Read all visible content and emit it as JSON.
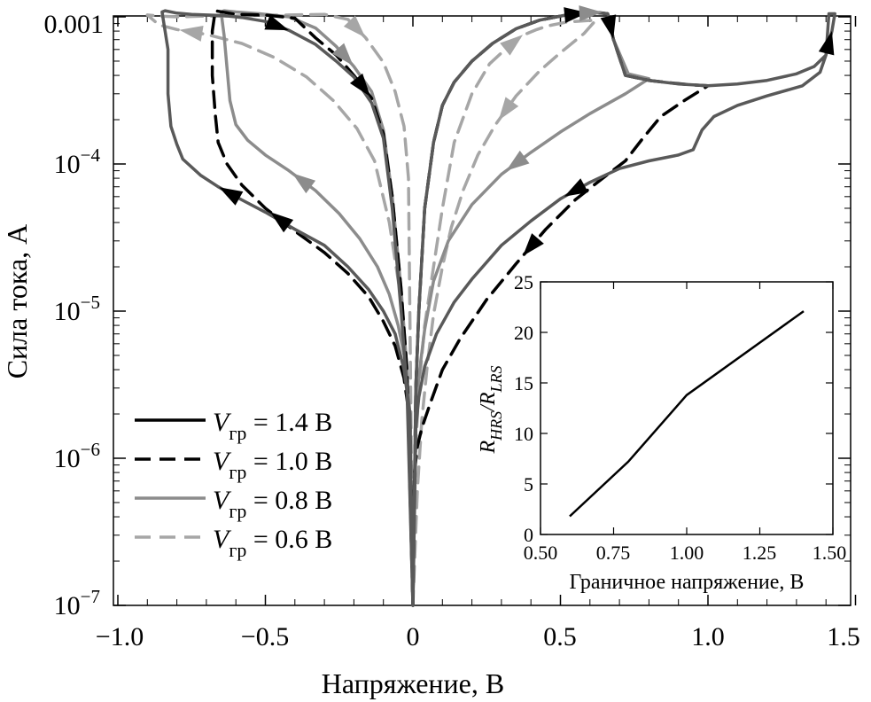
{
  "chart_data": [
    {
      "type": "line",
      "xlabel": "Напряжение, В",
      "ylabel": "Сила тока, А",
      "x_ticks": [
        "−1.0",
        "−0.5",
        "0",
        "0.5",
        "1.0",
        "1.5"
      ],
      "x_tick_values": [
        -1.0,
        -0.5,
        0,
        0.5,
        1.0,
        1.5
      ],
      "y_scale": "log",
      "y_tick_values": [
        1e-07,
        1e-06,
        1e-05,
        0.0001,
        0.001
      ],
      "y_ticks": [
        {
          "base": "10",
          "exp": "−7"
        },
        {
          "base": "10",
          "exp": "−6"
        },
        {
          "base": "10",
          "exp": "−5"
        },
        {
          "base": "10",
          "exp": "−4"
        },
        {
          "base": "0.001",
          "exp": ""
        }
      ],
      "xlim": [
        -1.0,
        1.5
      ],
      "ylim": [
        1e-07,
        0.0012
      ],
      "legend_position": "lower-left",
      "series": [
        {
          "name": "V_гр = 1.4 В",
          "legend": {
            "v": "V",
            "sub": "гр",
            "rest": " = 1.4 В"
          },
          "color": "#595959",
          "dash": "solid",
          "x": [
            0,
            -0.01,
            -0.03,
            -0.06,
            -0.1,
            -0.15,
            -0.22,
            -0.3,
            -0.4,
            -0.5,
            -0.58,
            -0.66,
            -0.72,
            -0.78,
            -0.8,
            -0.82,
            -0.83,
            -0.83,
            -0.85,
            -0.84,
            -0.8,
            -0.75,
            -0.7,
            -0.64,
            -0.58,
            -0.5,
            -0.42,
            -0.33,
            -0.26,
            -0.2,
            -0.14,
            -0.1,
            -0.07,
            -0.04,
            -0.02,
            0,
            0.01,
            0.02,
            0.04,
            0.07,
            0.1,
            0.14,
            0.2,
            0.27,
            0.35,
            0.43,
            0.52,
            0.58,
            0.63,
            0.66,
            0.68,
            0.72,
            0.8,
            0.9,
            1.0,
            1.1,
            1.2,
            1.3,
            1.36,
            1.4,
            1.42,
            1.43,
            1.41,
            1.4,
            1.38,
            1.32,
            1.2,
            1.1,
            1.02,
            0.98,
            0.95,
            0.9,
            0.8,
            0.7,
            0.6,
            0.5,
            0.4,
            0.3,
            0.2,
            0.14,
            0.08,
            0.04,
            0.02,
            0.01,
            0
          ],
          "y": [
            1e-07,
            2e-06,
            4e-06,
            7e-06,
            1e-05,
            1.4e-05,
            2e-05,
            2.8e-05,
            3.6e-05,
            4.7e-05,
            5.7e-05,
            7e-05,
            8.4e-05,
            0.000108,
            0.000136,
            0.00018,
            0.0003,
            0.0006,
            0.00108,
            0.0011,
            0.00106,
            0.00104,
            0.00103,
            0.00102,
            0.00099,
            0.00093,
            0.00081,
            0.00065,
            0.0005,
            0.00039,
            0.00026,
            0.00015,
            5e-05,
            1e-05,
            3e-06,
            1e-07,
            3e-06,
            1e-05,
            5e-05,
            0.00014,
            0.00025,
            0.00036,
            0.0005,
            0.00066,
            0.00083,
            0.00095,
            0.00103,
            0.00106,
            0.00107,
            0.00105,
            0.0007,
            0.0004,
            0.00037,
            0.00035,
            0.00034,
            0.00035,
            0.00037,
            0.00041,
            0.00046,
            0.00055,
            0.0008,
            0.00105,
            0.00105,
            0.00055,
            0.00042,
            0.00034,
            0.00029,
            0.00025,
            0.00021,
            0.00017,
            0.000125,
            0.000115,
            0.000105,
            9.3e-05,
            7.5e-05,
            5.8e-05,
            4.1e-05,
            2.8e-05,
            1.65e-05,
            1.15e-05,
            7e-06,
            4.2e-06,
            2.6e-06,
            1.6e-06,
            1e-07
          ]
        },
        {
          "name": "V_гр = 1.0 В",
          "legend": {
            "v": "V",
            "sub": "гр",
            "rest": " = 1.0 В"
          },
          "color": "#000000",
          "dash": "dashed",
          "x": [
            0,
            -0.01,
            -0.03,
            -0.06,
            -0.1,
            -0.15,
            -0.22,
            -0.3,
            -0.4,
            -0.5,
            -0.58,
            -0.63,
            -0.66,
            -0.67,
            -0.68,
            -0.68,
            -0.67,
            -0.6,
            -0.5,
            -0.4,
            -0.33,
            -0.26,
            -0.2,
            -0.14,
            -0.1,
            -0.07,
            -0.04,
            -0.02,
            0,
            0.01,
            0.02,
            0.04,
            0.07,
            0.1,
            0.14,
            0.2,
            0.27,
            0.35,
            0.43,
            0.52,
            0.58,
            0.62,
            0.66,
            0.68,
            0.72,
            0.8,
            0.88,
            0.94,
            1.0,
            0.92,
            0.84,
            0.78,
            0.72,
            0.65,
            0.55,
            0.45,
            0.35,
            0.25,
            0.16,
            0.1,
            0.06,
            0.03,
            0.015,
            0.005,
            0
          ],
          "y": [
            1e-07,
            1.8e-06,
            3.5e-06,
            5.8e-06,
            8.5e-06,
            1.25e-05,
            1.8e-05,
            2.5e-05,
            3.5e-05,
            5e-05,
            7.2e-05,
            0.0001,
            0.00014,
            0.00022,
            0.0004,
            0.0008,
            0.0011,
            0.00104,
            0.00103,
            0.00098,
            0.00072,
            0.00055,
            0.0004,
            0.00028,
            0.00016,
            6e-05,
            1.4e-05,
            4e-06,
            1e-07,
            3e-06,
            1e-05,
            5e-05,
            0.00014,
            0.00025,
            0.00036,
            0.0005,
            0.00066,
            0.00083,
            0.00095,
            0.00103,
            0.00106,
            0.00107,
            0.00105,
            0.0007,
            0.0004,
            0.00037,
            0.000355,
            0.000345,
            0.00034,
            0.00027,
            0.00021,
            0.00015,
            0.000105,
            8.2e-05,
            5.7e-05,
            3.6e-05,
            2.1e-05,
            1.2e-05,
            6.5e-06,
            4e-06,
            2.4e-06,
            1.6e-06,
            1.2e-06,
            8e-07,
            1e-07
          ]
        },
        {
          "name": "V_гр = 0.8 В",
          "legend": {
            "v": "V",
            "sub": "гр",
            "rest": " = 0.8 В"
          },
          "color": "#8c8c8c",
          "dash": "solid",
          "x": [
            0,
            -0.01,
            -0.025,
            -0.05,
            -0.08,
            -0.12,
            -0.18,
            -0.25,
            -0.33,
            -0.42,
            -0.5,
            -0.56,
            -0.6,
            -0.62,
            -0.63,
            -0.64,
            -0.65,
            -0.64,
            -0.6,
            -0.52,
            -0.42,
            -0.33,
            -0.26,
            -0.2,
            -0.14,
            -0.1,
            -0.07,
            -0.04,
            -0.02,
            0,
            0.01,
            0.02,
            0.04,
            0.07,
            0.1,
            0.14,
            0.2,
            0.27,
            0.35,
            0.43,
            0.52,
            0.58,
            0.62,
            0.66,
            0.68,
            0.73,
            0.8,
            0.72,
            0.6,
            0.5,
            0.4,
            0.3,
            0.2,
            0.12,
            0.07,
            0.04,
            0.02,
            0.01,
            0
          ],
          "y": [
            1e-07,
            2e-06,
            4.5e-06,
            8e-06,
            1.3e-05,
            2e-05,
            3.1e-05,
            4.6e-05,
            6.6e-05,
            9e-05,
            0.000115,
            0.000145,
            0.000185,
            0.00027,
            0.00045,
            0.00075,
            0.00108,
            0.0011,
            0.00108,
            0.00105,
            0.001,
            0.00084,
            0.00063,
            0.00046,
            0.00031,
            0.00017,
            6e-05,
            1.4e-05,
            4e-06,
            1e-07,
            3e-06,
            1e-05,
            5e-05,
            0.00014,
            0.00025,
            0.00036,
            0.0005,
            0.00066,
            0.00083,
            0.00095,
            0.00103,
            0.00106,
            0.00107,
            0.00105,
            0.0007,
            0.00041,
            0.00038,
            0.0003,
            0.00022,
            0.000165,
            0.00012,
            8.5e-05,
            5.3e-05,
            3e-05,
            1.6e-05,
            7.5e-06,
            3.6e-06,
            1.8e-06,
            1e-07
          ]
        },
        {
          "name": "V_гр = 0.6 В",
          "legend": {
            "v": "V",
            "sub": "гр",
            "rest": " = 0.6 В"
          },
          "color": "#a6a6a6",
          "dash": "dashed",
          "x": [
            0,
            -0.005,
            -0.01,
            -0.02,
            -0.04,
            -0.08,
            -0.13,
            -0.19,
            -0.27,
            -0.36,
            -0.47,
            -0.58,
            -0.7,
            -0.8,
            -0.86,
            -0.9,
            -0.85,
            -0.8,
            -0.72,
            -0.65,
            -0.55,
            -0.42,
            -0.3,
            -0.22,
            -0.16,
            -0.1,
            -0.06,
            -0.03,
            -0.015,
            0,
            0.005,
            0.01,
            0.02,
            0.04,
            0.07,
            0.1,
            0.14,
            0.2,
            0.26,
            0.32,
            0.36,
            0.38,
            0.4,
            0.42,
            0.46,
            0.52,
            0.58,
            0.62,
            0.58,
            0.5,
            0.43,
            0.35,
            0.28,
            0.22,
            0.17,
            0.13,
            0.1,
            0.07,
            0.05,
            0.03,
            0.015,
            0
          ],
          "y": [
            1e-07,
            4e-07,
            1.5e-06,
            4e-06,
            1.2e-05,
            4e-05,
            0.000105,
            0.000175,
            0.00027,
            0.00039,
            0.00053,
            0.00066,
            0.00076,
            0.00082,
            0.00088,
            0.00103,
            0.00101,
            0.001,
            0.00101,
            0.00101,
            0.00102,
            0.00103,
            0.00104,
            0.00096,
            0.00072,
            0.00049,
            0.00031,
            0.00018,
            8e-05,
            1e-07,
            4e-07,
            1.2e-06,
            3e-06,
            8e-06,
            2e-05,
            5e-05,
            0.00014,
            0.0003,
            0.00048,
            0.00062,
            0.00072,
            0.00076,
            0.00079,
            0.00082,
            0.00087,
            0.00092,
            0.00094,
            0.00095,
            0.00077,
            0.00057,
            0.00043,
            0.00029,
            0.000185,
            0.000115,
            6.6e-05,
            3.7e-05,
            2e-05,
            9.5e-06,
            4.5e-06,
            1.8e-06,
            6e-07,
            1e-07
          ]
        }
      ]
    },
    {
      "type": "line",
      "xlabel": "Граничное напряжение, В",
      "ylabel": {
        "r1": "R",
        "s1": "HRS",
        "r2": "/R",
        "s2": "LRS"
      },
      "x_ticks": [
        "0.50",
        "0.75",
        "1.00",
        "1.25",
        "1.50"
      ],
      "x_tick_values": [
        0.5,
        0.75,
        1.0,
        1.25,
        1.5
      ],
      "y_ticks": [
        "0",
        "5",
        "10",
        "15",
        "20",
        "25"
      ],
      "y_tick_values": [
        0,
        5,
        10,
        15,
        20,
        25
      ],
      "xlim": [
        0.5,
        1.5
      ],
      "ylim": [
        0,
        25
      ],
      "series": [
        {
          "color": "#000000",
          "x": [
            0.6,
            0.8,
            1.0,
            1.4
          ],
          "y": [
            1.8,
            7.2,
            13.8,
            22.1
          ]
        }
      ]
    }
  ]
}
